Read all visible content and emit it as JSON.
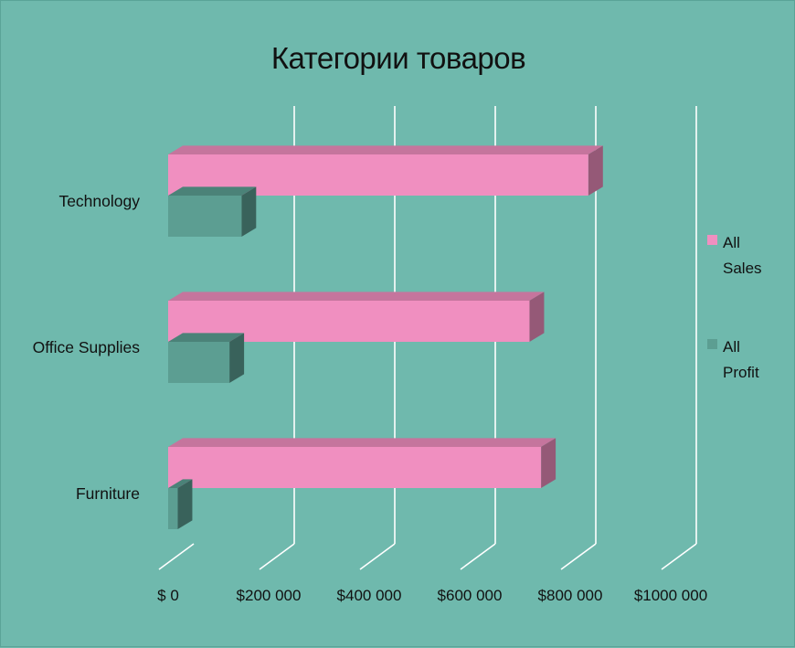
{
  "chart_data": {
    "type": "bar",
    "orientation": "horizontal",
    "style": "3d",
    "title": "Категории товаров",
    "categories": [
      "Technology",
      "Office Supplies",
      "Furniture"
    ],
    "series": [
      {
        "name": "All Sales",
        "values": [
          836000,
          719000,
          742000
        ],
        "color": "#f08fc0"
      },
      {
        "name": "All Profit",
        "values": [
          146000,
          122000,
          19000
        ],
        "color": "#5c9e92"
      }
    ],
    "xlim": [
      0,
      1000000
    ],
    "xticks": [
      0,
      200000,
      400000,
      600000,
      800000,
      1000000
    ],
    "xtick_labels": [
      "$ 0",
      "$200 000",
      "$400 000",
      "$600 000",
      "$800 000",
      "$1000 000"
    ],
    "grid": true,
    "legend_position": "right",
    "legend": [
      {
        "lines": [
          "All",
          "Sales"
        ]
      },
      {
        "lines": [
          "All",
          "Profit"
        ]
      }
    ],
    "colors": {
      "background": "#6fb9ad",
      "gridline": "#ffffff"
    }
  }
}
